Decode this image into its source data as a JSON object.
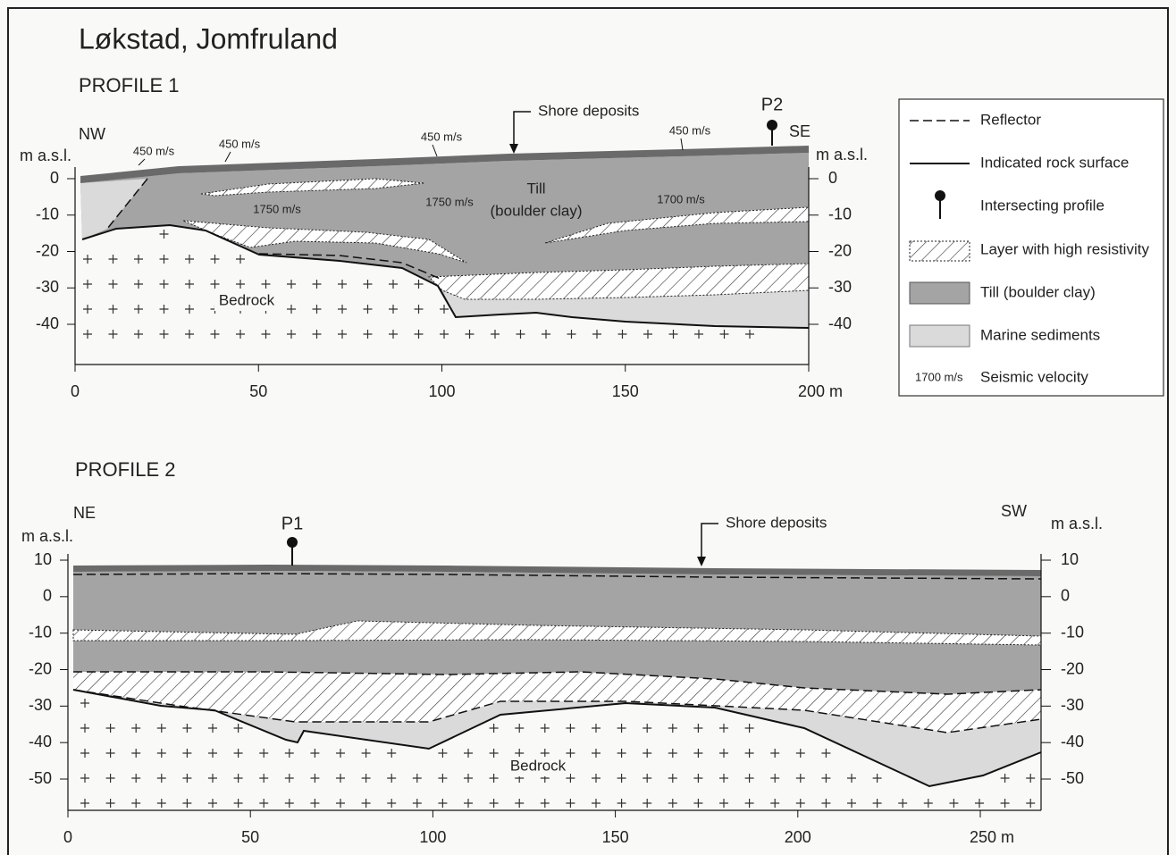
{
  "title": "Løkstad, Jomfruland",
  "profiles": [
    {
      "label": "PROFILE 1",
      "left_direction": "NW",
      "right_direction": "SE",
      "y_axis_label": "m a.s.l.",
      "xticks": [
        0,
        50,
        100,
        150,
        {
          "value": 200,
          "label": "200 m"
        }
      ],
      "yticks": [
        0,
        -10,
        -20,
        -30,
        -40
      ],
      "intersection": "P2",
      "shore_deposits": "Shore deposits",
      "velocities": [
        "450 m/s",
        "450 m/s",
        "450 m/s",
        "450 m/s",
        "1750 m/s",
        "1750 m/s",
        "1700 m/s"
      ],
      "till": [
        "Till",
        "(boulder clay)"
      ],
      "bedrock": "Bedrock"
    },
    {
      "label": "PROFILE 2",
      "left_direction": "NE",
      "right_direction": "SW",
      "y_axis_label": "m a.s.l.",
      "xticks": [
        0,
        50,
        100,
        150,
        200,
        {
          "value": 250,
          "label": "250 m"
        }
      ],
      "yticks": [
        10,
        0,
        -10,
        -20,
        -30,
        -40,
        -50
      ],
      "intersection": "P1",
      "shore_deposits": "Shore deposits",
      "bedrock": "Bedrock"
    }
  ],
  "legend": [
    {
      "label": "Reflector"
    },
    {
      "label": "Indicated rock surface"
    },
    {
      "label": "Intersecting profile"
    },
    {
      "label": "Layer with high resistivity"
    },
    {
      "label": "Till (boulder clay)"
    },
    {
      "label": "Marine sediments"
    },
    {
      "symbol": "1700 m/s",
      "label": "Seismic velocity"
    }
  ]
}
